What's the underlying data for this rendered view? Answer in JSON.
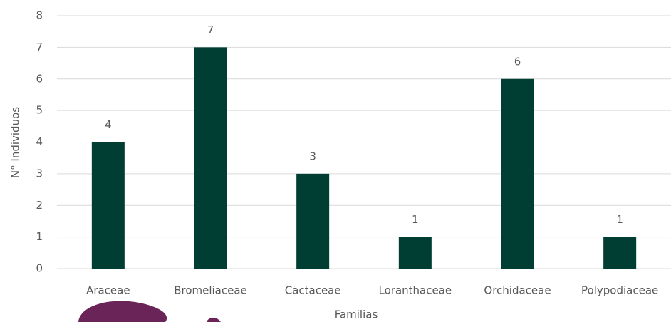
{
  "chart_data": {
    "type": "bar",
    "x_label": "Familias",
    "y_label": "N° Individuos",
    "categories": [
      "Araceae",
      "Bromeliaceae",
      "Cactaceae",
      "Loranthaceae",
      "Orchidaceae",
      "Polypodiaceae"
    ],
    "values": [
      4,
      7,
      3,
      1,
      6,
      1
    ],
    "color": "#003d33",
    "ylim": [
      0,
      8
    ],
    "yticks": [
      0,
      1,
      2,
      3,
      4,
      5,
      6,
      7,
      8
    ],
    "grid": true
  }
}
